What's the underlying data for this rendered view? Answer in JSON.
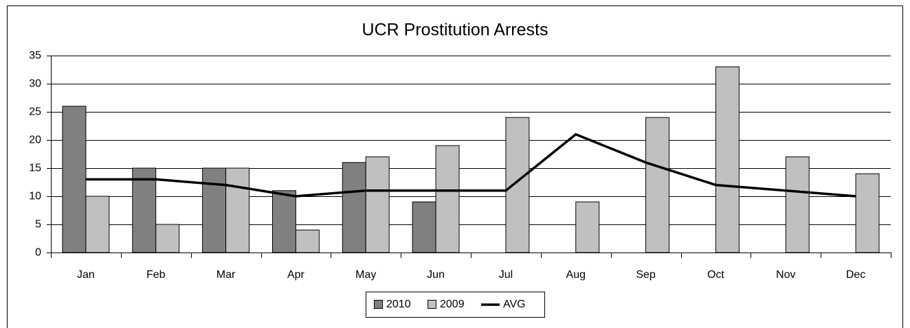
{
  "chart_data": {
    "type": "bar",
    "title": "UCR Prostitution Arrests",
    "categories": [
      "Jan",
      "Feb",
      "Mar",
      "Apr",
      "May",
      "Jun",
      "Jul",
      "Aug",
      "Sep",
      "Oct",
      "Nov",
      "Dec"
    ],
    "series": [
      {
        "name": "2010",
        "type": "bar",
        "color": "#808080",
        "values": [
          26,
          15,
          15,
          11,
          16,
          9,
          null,
          null,
          null,
          null,
          null,
          null
        ]
      },
      {
        "name": "2009",
        "type": "bar",
        "color": "#c0c0c0",
        "values": [
          10,
          5,
          15,
          4,
          17,
          19,
          24,
          9,
          24,
          33,
          17,
          14
        ]
      },
      {
        "name": "AVG",
        "type": "line",
        "color": "#000000",
        "values": [
          13,
          13,
          12,
          10,
          11,
          11,
          11,
          21,
          16,
          12,
          11,
          10
        ]
      }
    ],
    "ylim": [
      0,
      35
    ],
    "yticks": [
      0,
      5,
      10,
      15,
      20,
      25,
      30,
      35
    ],
    "grid": true,
    "legend": "bottom"
  }
}
